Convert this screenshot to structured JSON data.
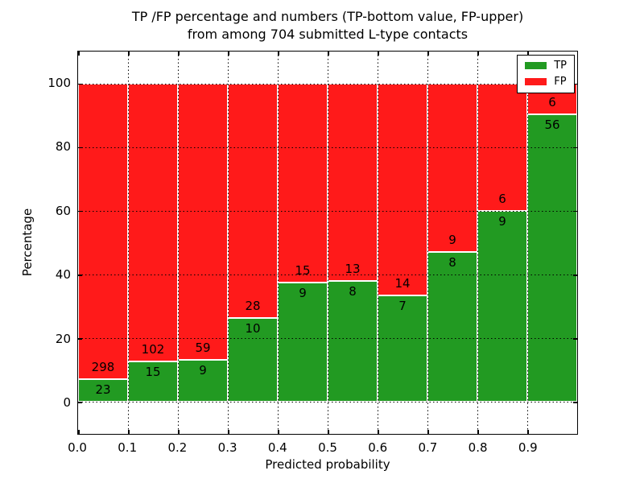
{
  "chart_data": {
    "type": "bar",
    "stacked": true,
    "title_line1": "TP /FP percentage and numbers (TP-bottom value, FP-upper)",
    "title_line2": "from among 704 submitted L-type contacts",
    "xlabel": "Predicted probability",
    "ylabel": "Percentage",
    "total_contacts": 704,
    "bin_edges": [
      0.0,
      0.1,
      0.2,
      0.3,
      0.4,
      0.5,
      0.6,
      0.7,
      0.8,
      0.9,
      1.0
    ],
    "series": [
      {
        "name": "TP",
        "color": "#229a22",
        "counts": [
          23,
          15,
          9,
          10,
          9,
          8,
          7,
          8,
          9,
          56
        ]
      },
      {
        "name": "FP",
        "color": "#ff1a1a",
        "counts": [
          298,
          102,
          59,
          28,
          15,
          13,
          14,
          9,
          6,
          6
        ]
      }
    ],
    "tp_percent": [
      7.2,
      12.8,
      13.2,
      26.3,
      37.5,
      38.1,
      33.3,
      47.1,
      60.0,
      90.3
    ],
    "x_ticks": [
      "0.0",
      "0.1",
      "0.2",
      "0.3",
      "0.4",
      "0.5",
      "0.6",
      "0.7",
      "0.8",
      "0.9"
    ],
    "y_ticks": [
      0,
      20,
      40,
      60,
      80,
      100
    ],
    "xlim": [
      0.0,
      1.0
    ],
    "ylim": [
      -10,
      110
    ],
    "grid": "dotted",
    "legend_position": "upper right"
  }
}
